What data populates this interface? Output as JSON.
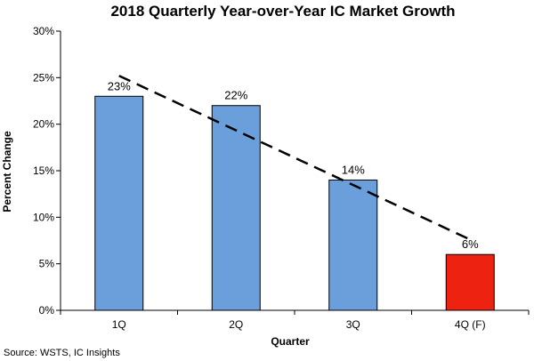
{
  "chart_data": {
    "type": "bar",
    "title": "2018 Quarterly Year-over-Year IC Market Growth",
    "xlabel": "Quarter",
    "ylabel": "Percent Change",
    "categories": [
      "1Q",
      "2Q",
      "3Q",
      "4Q (F)"
    ],
    "values": [
      23,
      22,
      14,
      6
    ],
    "data_labels": [
      "23%",
      "22%",
      "14%",
      "6%"
    ],
    "bar_colors": [
      "#6a9fdc",
      "#6a9fdc",
      "#6a9fdc",
      "#ee2211"
    ],
    "ylim": [
      0,
      30
    ],
    "yticks": [
      0,
      5,
      10,
      15,
      20,
      25,
      30
    ],
    "ytick_labels": [
      "0%",
      "5%",
      "10%",
      "15%",
      "20%",
      "25%",
      "30%"
    ],
    "trendline": {
      "style": "dashed",
      "from": [
        1,
        25.2
      ],
      "to": [
        4,
        7.6
      ]
    },
    "grid": false,
    "legend": "none"
  },
  "source": "Source: WSTS, IC Insights"
}
